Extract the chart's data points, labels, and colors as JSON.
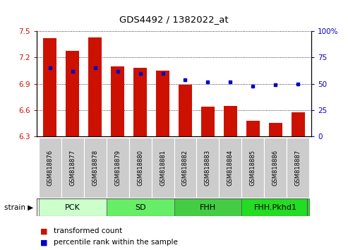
{
  "title": "GDS4492 / 1382022_at",
  "samples": [
    "GSM818876",
    "GSM818877",
    "GSM818878",
    "GSM818879",
    "GSM818880",
    "GSM818881",
    "GSM818882",
    "GSM818883",
    "GSM818884",
    "GSM818885",
    "GSM818886",
    "GSM818887"
  ],
  "transformed_count": [
    7.42,
    7.28,
    7.43,
    7.1,
    7.08,
    7.05,
    6.89,
    6.64,
    6.65,
    6.48,
    6.45,
    6.57
  ],
  "percentile_rank": [
    65,
    62,
    65,
    62,
    60,
    60,
    54,
    52,
    52,
    48,
    49,
    50
  ],
  "ylim_left": [
    6.3,
    7.5
  ],
  "yticks_left": [
    6.3,
    6.6,
    6.9,
    7.2,
    7.5
  ],
  "ylim_right": [
    0,
    100
  ],
  "yticks_right": [
    0,
    25,
    50,
    75,
    100
  ],
  "bar_color": "#cc1100",
  "dot_color": "#0000cc",
  "bar_bottom": 6.3,
  "groups": [
    {
      "label": "PCK",
      "start": 0,
      "end": 3,
      "color": "#ccffcc"
    },
    {
      "label": "SD",
      "start": 3,
      "end": 6,
      "color": "#66ee66"
    },
    {
      "label": "FHH",
      "start": 6,
      "end": 9,
      "color": "#44cc44"
    },
    {
      "label": "FHH.Pkhd1",
      "start": 9,
      "end": 12,
      "color": "#22dd22"
    }
  ],
  "legend_red_label": "transformed count",
  "legend_blue_label": "percentile rank within the sample",
  "strain_label": "strain",
  "tick_label_color_left": "#cc1100",
  "tick_label_color_right": "#0000cc",
  "sample_bg_color": "#cccccc",
  "sample_border_color": "#999999"
}
